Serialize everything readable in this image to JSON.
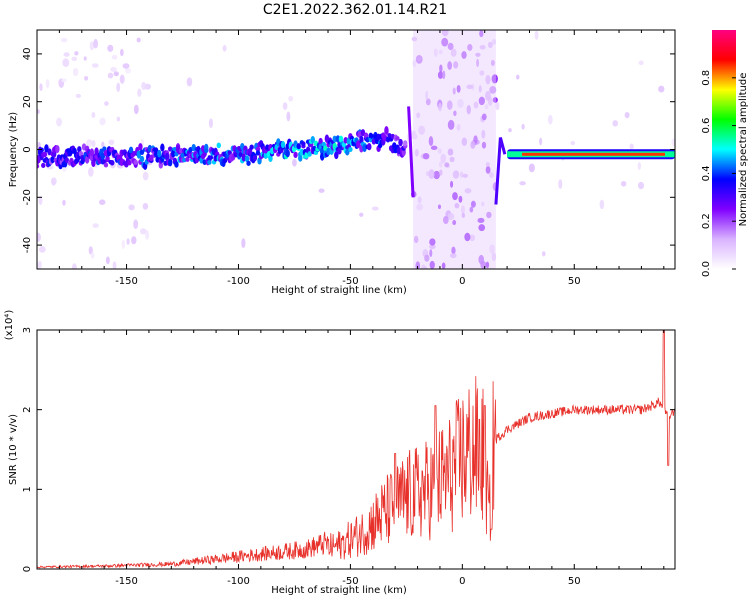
{
  "figure": {
    "title": "C2E1.2022.362.01.14.R21"
  },
  "chart_data": [
    {
      "type": "heatmap",
      "xlabel": "Height of straight line (km)",
      "ylabel": "Frequency (Hz)",
      "xlim": [
        -190,
        95
      ],
      "ylim": [
        -50,
        50
      ],
      "xticks": [
        -150,
        -100,
        -50,
        0,
        50
      ],
      "yticks": [
        -40,
        -20,
        0,
        20,
        40
      ],
      "colorbar": {
        "label": "Normalized spectral amplitude",
        "range": [
          0,
          1
        ],
        "ticks": [
          "0.0",
          "0.2",
          "0.4",
          "0.6",
          "0.8"
        ],
        "colors": [
          "#ffffff",
          "#d9b3ff",
          "#8000ff",
          "#0000ff",
          "#00ffff",
          "#00ff00",
          "#ffff00",
          "#ff0000",
          "#ff0080"
        ]
      },
      "trace": {
        "description_points": [
          {
            "x": -190,
            "y": -3,
            "amp": 0.35
          },
          {
            "x": -150,
            "y": -3,
            "amp": 0.4
          },
          {
            "x": -100,
            "y": -2,
            "amp": 0.45
          },
          {
            "x": -60,
            "y": 1,
            "amp": 0.5
          },
          {
            "x": -35,
            "y": 5,
            "amp": 0.4
          },
          {
            "x": -25,
            "y": 0,
            "amp": 0.3
          },
          {
            "x": 20,
            "y": -1,
            "amp": 0.5
          },
          {
            "x": 50,
            "y": -2,
            "amp": 0.85
          },
          {
            "x": 95,
            "y": -2,
            "amp": 0.8
          }
        ],
        "noise_band": [
          -22,
          15
        ],
        "noise_band_left": [
          -190,
          -140
        ]
      }
    },
    {
      "type": "line",
      "xlabel": "Height of straight line (km)",
      "ylabel": "SNR (10 * v/v)",
      "scale_label": "(x10⁴)",
      "xlim": [
        -190,
        95
      ],
      "ylim": [
        0,
        3
      ],
      "xticks": [
        -150,
        -100,
        -50,
        0,
        50
      ],
      "yticks": [
        0,
        1,
        2,
        3
      ],
      "color": "#e8302a",
      "envelope": {
        "x": [
          -190,
          -160,
          -130,
          -110,
          -90,
          -70,
          -55,
          -45,
          -35,
          -25,
          -15,
          -5,
          0,
          5,
          10,
          12,
          14,
          20,
          30,
          40,
          50,
          60,
          70,
          80,
          85,
          88,
          90,
          92,
          95
        ],
        "y": [
          0.02,
          0.03,
          0.05,
          0.1,
          0.15,
          0.2,
          0.3,
          0.45,
          0.7,
          0.9,
          1.0,
          1.2,
          1.4,
          1.5,
          1.4,
          0.6,
          1.6,
          1.75,
          1.9,
          1.95,
          2.0,
          2.0,
          2.0,
          2.0,
          2.05,
          2.1,
          2.0,
          1.9,
          2.0
        ]
      },
      "peaks": [
        {
          "x": -30,
          "y": 1.45
        },
        {
          "x": -12,
          "y": 2.05
        },
        {
          "x": 10,
          "y": 2.05
        },
        {
          "x": 13,
          "y": 0.5
        },
        {
          "x": 90,
          "y": 3.0
        },
        {
          "x": 92,
          "y": 1.3
        }
      ]
    }
  ]
}
